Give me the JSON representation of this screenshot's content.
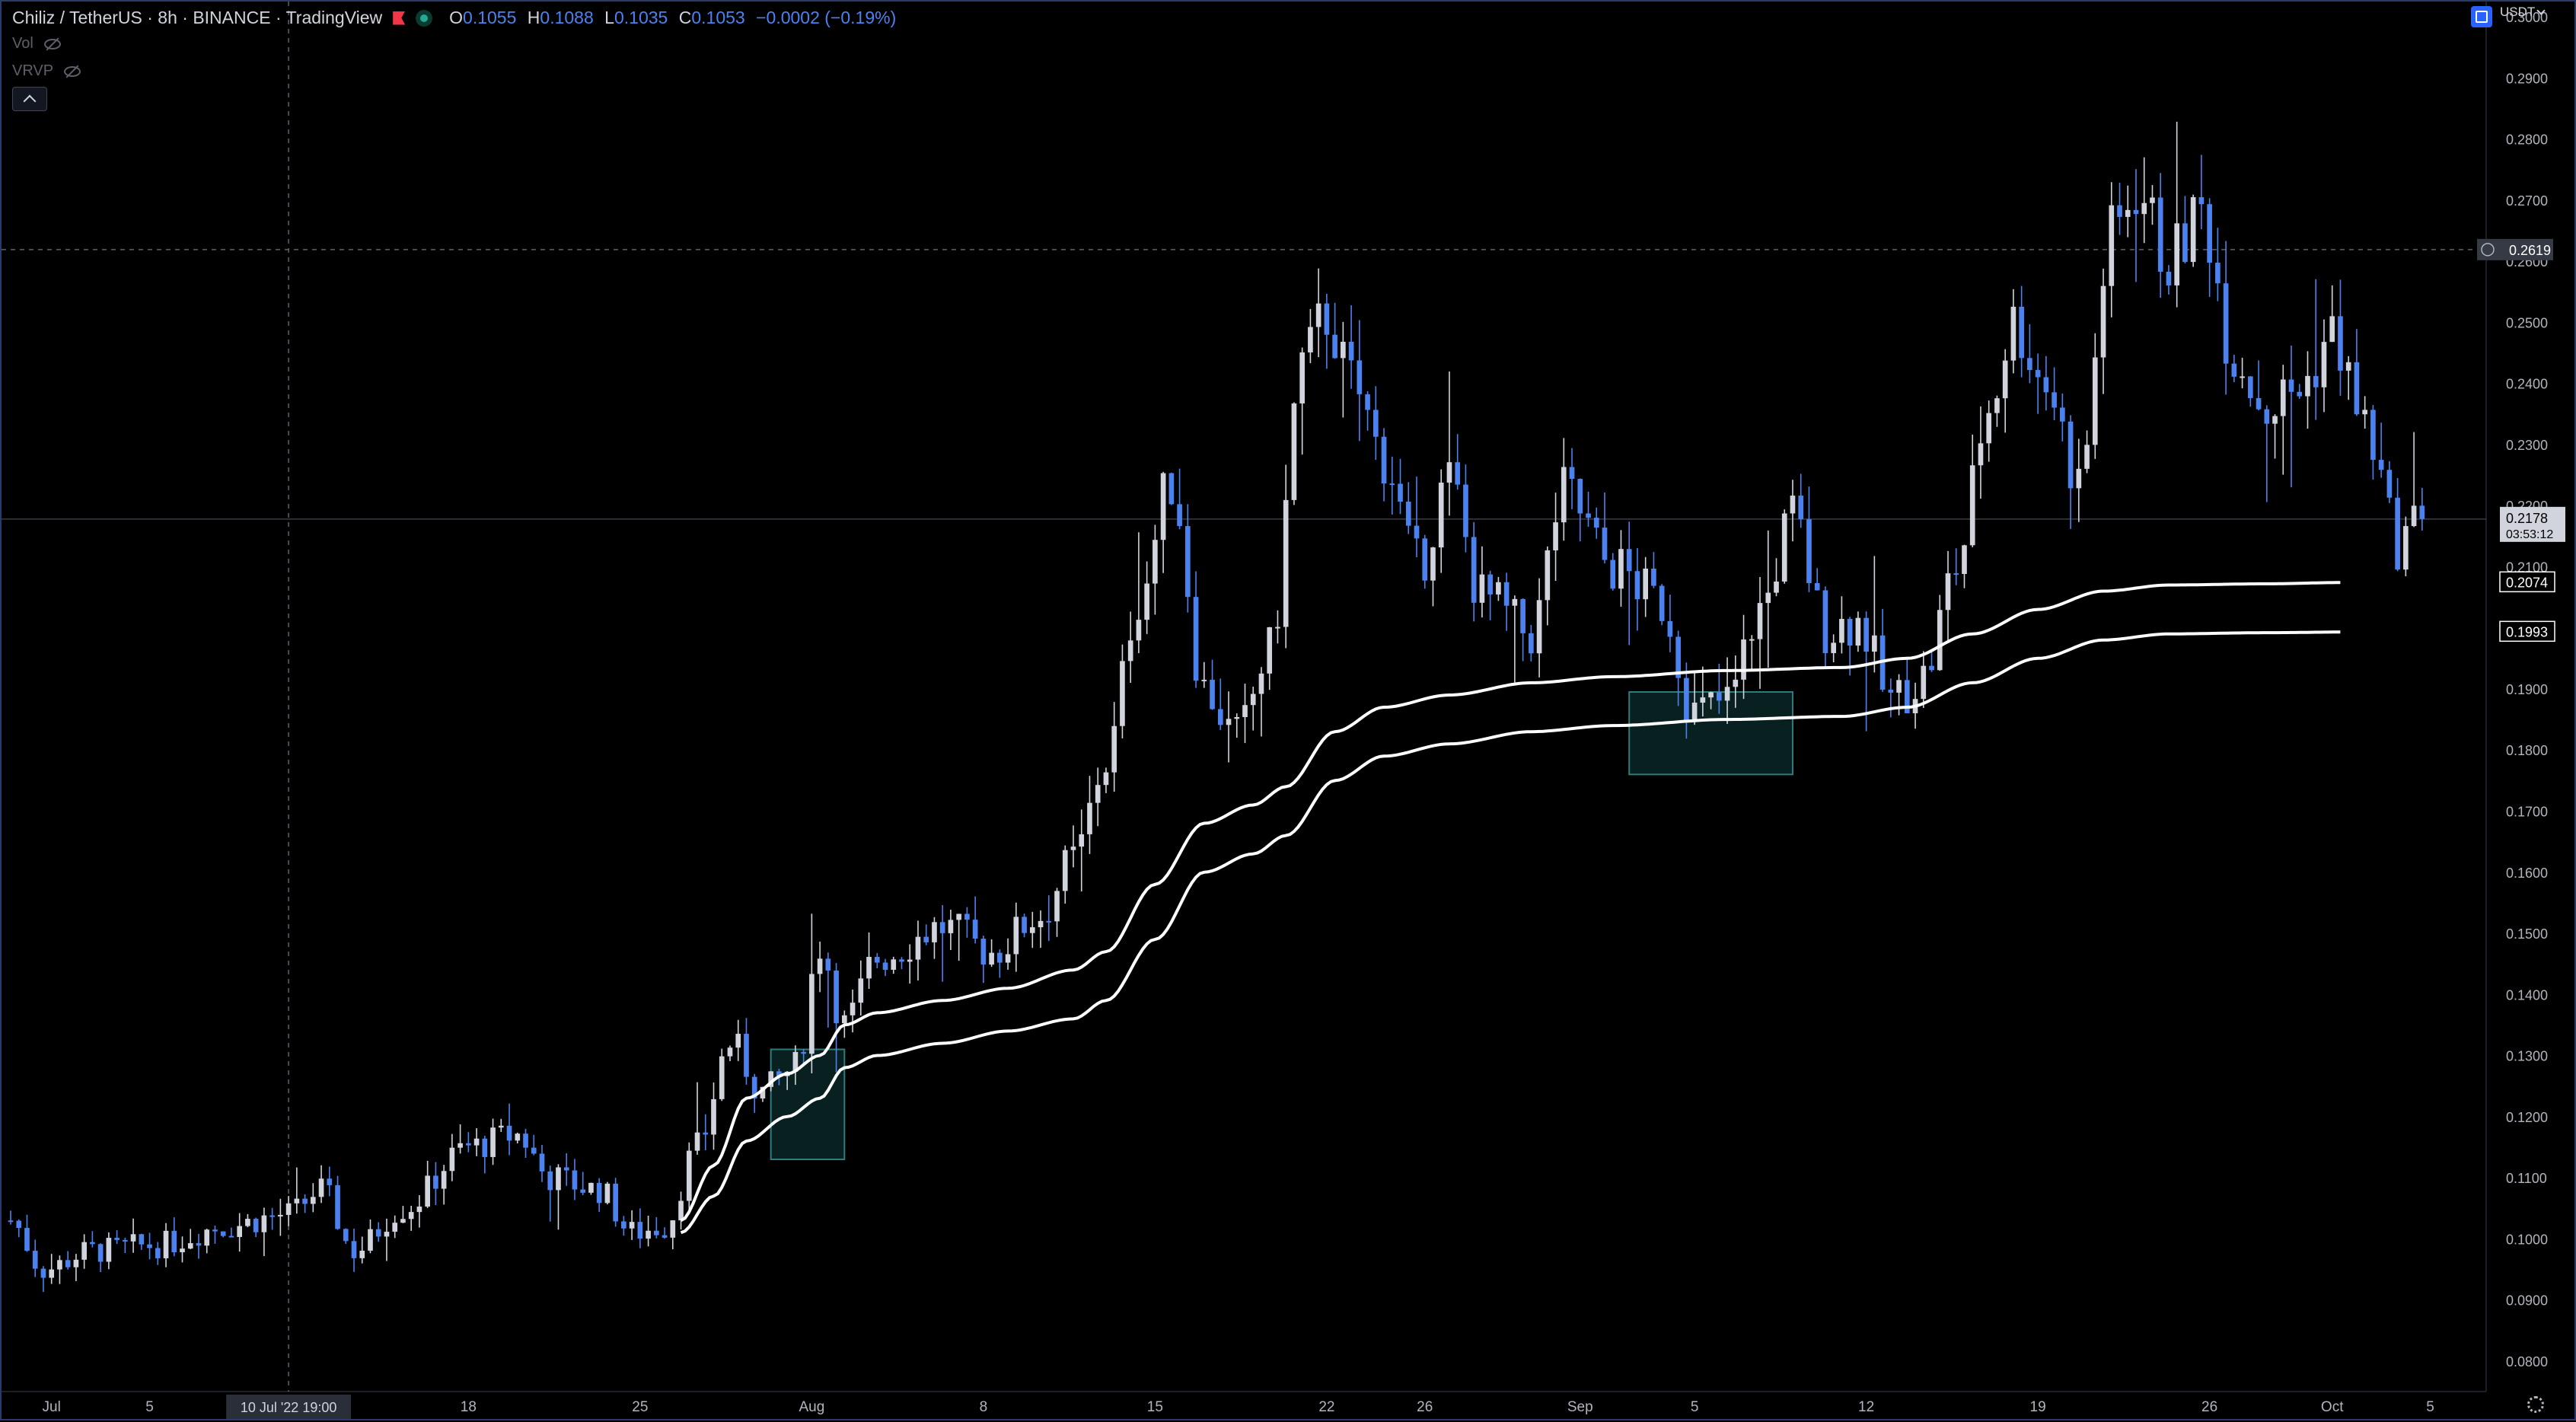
{
  "legend": {
    "title": "Chiliz / TetherUS · 8h · BINANCE · TradingView",
    "ohlc": [
      {
        "k": "O",
        "v": "0.1055"
      },
      {
        "k": "H",
        "v": "0.1088"
      },
      {
        "k": "L",
        "v": "0.1035"
      },
      {
        "k": "C",
        "v": "0.1053"
      }
    ],
    "change": "−0.0002 (−0.19%)",
    "indicators": [
      "Vol",
      "VRVP"
    ]
  },
  "currency_label": "USDT",
  "colors": {
    "background": "#000000",
    "candle_up": "#d1d4dc",
    "candle_down": "#4c82f0",
    "ma_line": "#ffffff",
    "zone_border": "#2e7c7c",
    "zone_fill": "#0a2626",
    "text": "#b2b5be"
  },
  "chart_data": {
    "type": "candlestick",
    "interval": "8h",
    "y_axis": {
      "min": 0.075,
      "max": 0.3025,
      "ticks": [
        "0.3000",
        "0.2900",
        "0.2800",
        "0.2700",
        "0.2600",
        "0.2500",
        "0.2400",
        "0.2300",
        "0.2200",
        "0.2100",
        "0.2000",
        "0.1900",
        "0.1800",
        "0.1700",
        "0.1600",
        "0.1500",
        "0.1400",
        "0.1300",
        "0.1200",
        "0.1100",
        "0.1000",
        "0.0900",
        "0.0800"
      ]
    },
    "x_axis": {
      "start_index": 0,
      "end_index": 302,
      "ticks": [
        {
          "label": "Jul",
          "i": 5
        },
        {
          "label": "5",
          "i": 17
        },
        {
          "label": "18",
          "i": 56
        },
        {
          "label": "25",
          "i": 77
        },
        {
          "label": "Aug",
          "i": 98
        },
        {
          "label": "8",
          "i": 119
        },
        {
          "label": "15",
          "i": 140
        },
        {
          "label": "22",
          "i": 161
        },
        {
          "label": "26",
          "i": 173
        },
        {
          "label": "Sep",
          "i": 192
        },
        {
          "label": "5",
          "i": 206
        },
        {
          "label": "12",
          "i": 227
        },
        {
          "label": "19",
          "i": 248
        },
        {
          "label": "26",
          "i": 269
        },
        {
          "label": "Oct",
          "i": 284
        },
        {
          "label": "5",
          "i": 296
        }
      ]
    },
    "crosshair": {
      "time_label": "10 Jul '22   19:00",
      "i": 34,
      "price": 0.2619
    },
    "price_labels": [
      {
        "value": 0.2619,
        "text": "0.2619",
        "kind": "crosshair"
      },
      {
        "value": 0.2178,
        "text": "0.2178",
        "sub": "03:53:12",
        "kind": "last"
      },
      {
        "value": 0.2074,
        "text": "0.2074",
        "kind": "ma"
      },
      {
        "value": 0.1993,
        "text": "0.1993",
        "kind": "ma"
      }
    ],
    "zones": [
      {
        "i0": 93,
        "i1": 102,
        "top": 0.131,
        "bottom": 0.113
      },
      {
        "i0": 198,
        "i1": 218,
        "top": 0.1895,
        "bottom": 0.176
      }
    ],
    "anchors": [
      [
        0,
        0.103
      ],
      [
        4,
        0.095
      ],
      [
        10,
        0.098
      ],
      [
        18,
        0.099
      ],
      [
        26,
        0.102
      ],
      [
        34,
        0.104
      ],
      [
        38,
        0.108
      ],
      [
        42,
        0.098
      ],
      [
        48,
        0.105
      ],
      [
        56,
        0.115
      ],
      [
        62,
        0.117
      ],
      [
        66,
        0.11
      ],
      [
        72,
        0.108
      ],
      [
        76,
        0.101
      ],
      [
        80,
        0.102
      ],
      [
        84,
        0.115
      ],
      [
        88,
        0.132
      ],
      [
        92,
        0.124
      ],
      [
        96,
        0.128
      ],
      [
        99,
        0.148
      ],
      [
        102,
        0.135
      ],
      [
        106,
        0.146
      ],
      [
        114,
        0.151
      ],
      [
        120,
        0.147
      ],
      [
        126,
        0.153
      ],
      [
        130,
        0.162
      ],
      [
        134,
        0.178
      ],
      [
        138,
        0.205
      ],
      [
        142,
        0.224
      ],
      [
        146,
        0.19
      ],
      [
        150,
        0.182
      ],
      [
        154,
        0.196
      ],
      [
        158,
        0.243
      ],
      [
        161,
        0.251
      ],
      [
        164,
        0.24
      ],
      [
        168,
        0.228
      ],
      [
        172,
        0.21
      ],
      [
        176,
        0.224
      ],
      [
        180,
        0.205
      ],
      [
        186,
        0.199
      ],
      [
        190,
        0.222
      ],
      [
        196,
        0.21
      ],
      [
        202,
        0.204
      ],
      [
        206,
        0.186
      ],
      [
        210,
        0.188
      ],
      [
        214,
        0.203
      ],
      [
        218,
        0.218
      ],
      [
        222,
        0.2
      ],
      [
        226,
        0.201
      ],
      [
        230,
        0.188
      ],
      [
        234,
        0.192
      ],
      [
        238,
        0.21
      ],
      [
        242,
        0.236
      ],
      [
        245,
        0.25
      ],
      [
        249,
        0.24
      ],
      [
        253,
        0.224
      ],
      [
        257,
        0.264
      ],
      [
        260,
        0.272
      ],
      [
        264,
        0.26
      ],
      [
        268,
        0.268
      ],
      [
        272,
        0.245
      ],
      [
        276,
        0.236
      ],
      [
        280,
        0.239
      ],
      [
        284,
        0.248
      ],
      [
        288,
        0.233
      ],
      [
        292,
        0.214
      ],
      [
        295,
        0.2178
      ]
    ],
    "ma_fast": [
      [
        82,
        0.103
      ],
      [
        86,
        0.112
      ],
      [
        90,
        0.123
      ],
      [
        95,
        0.127
      ],
      [
        99,
        0.13
      ],
      [
        102,
        0.135
      ],
      [
        106,
        0.137
      ],
      [
        114,
        0.139
      ],
      [
        122,
        0.141
      ],
      [
        130,
        0.144
      ],
      [
        134,
        0.147
      ],
      [
        140,
        0.158
      ],
      [
        146,
        0.168
      ],
      [
        152,
        0.171
      ],
      [
        156,
        0.174
      ],
      [
        162,
        0.183
      ],
      [
        168,
        0.187
      ],
      [
        176,
        0.189
      ],
      [
        186,
        0.191
      ],
      [
        196,
        0.192
      ],
      [
        210,
        0.193
      ],
      [
        224,
        0.1935
      ],
      [
        232,
        0.195
      ],
      [
        240,
        0.199
      ],
      [
        248,
        0.203
      ],
      [
        256,
        0.206
      ],
      [
        264,
        0.207
      ],
      [
        276,
        0.2072
      ],
      [
        285,
        0.2074
      ]
    ],
    "ma_slow": [
      [
        82,
        0.101
      ],
      [
        86,
        0.107
      ],
      [
        90,
        0.116
      ],
      [
        95,
        0.12
      ],
      [
        99,
        0.123
      ],
      [
        102,
        0.128
      ],
      [
        106,
        0.13
      ],
      [
        114,
        0.132
      ],
      [
        122,
        0.134
      ],
      [
        130,
        0.136
      ],
      [
        134,
        0.139
      ],
      [
        140,
        0.149
      ],
      [
        146,
        0.16
      ],
      [
        152,
        0.163
      ],
      [
        156,
        0.166
      ],
      [
        162,
        0.175
      ],
      [
        168,
        0.179
      ],
      [
        176,
        0.181
      ],
      [
        186,
        0.183
      ],
      [
        196,
        0.184
      ],
      [
        210,
        0.185
      ],
      [
        224,
        0.1855
      ],
      [
        232,
        0.187
      ],
      [
        240,
        0.191
      ],
      [
        248,
        0.195
      ],
      [
        256,
        0.198
      ],
      [
        264,
        0.199
      ],
      [
        276,
        0.1992
      ],
      [
        285,
        0.1993
      ]
    ]
  }
}
